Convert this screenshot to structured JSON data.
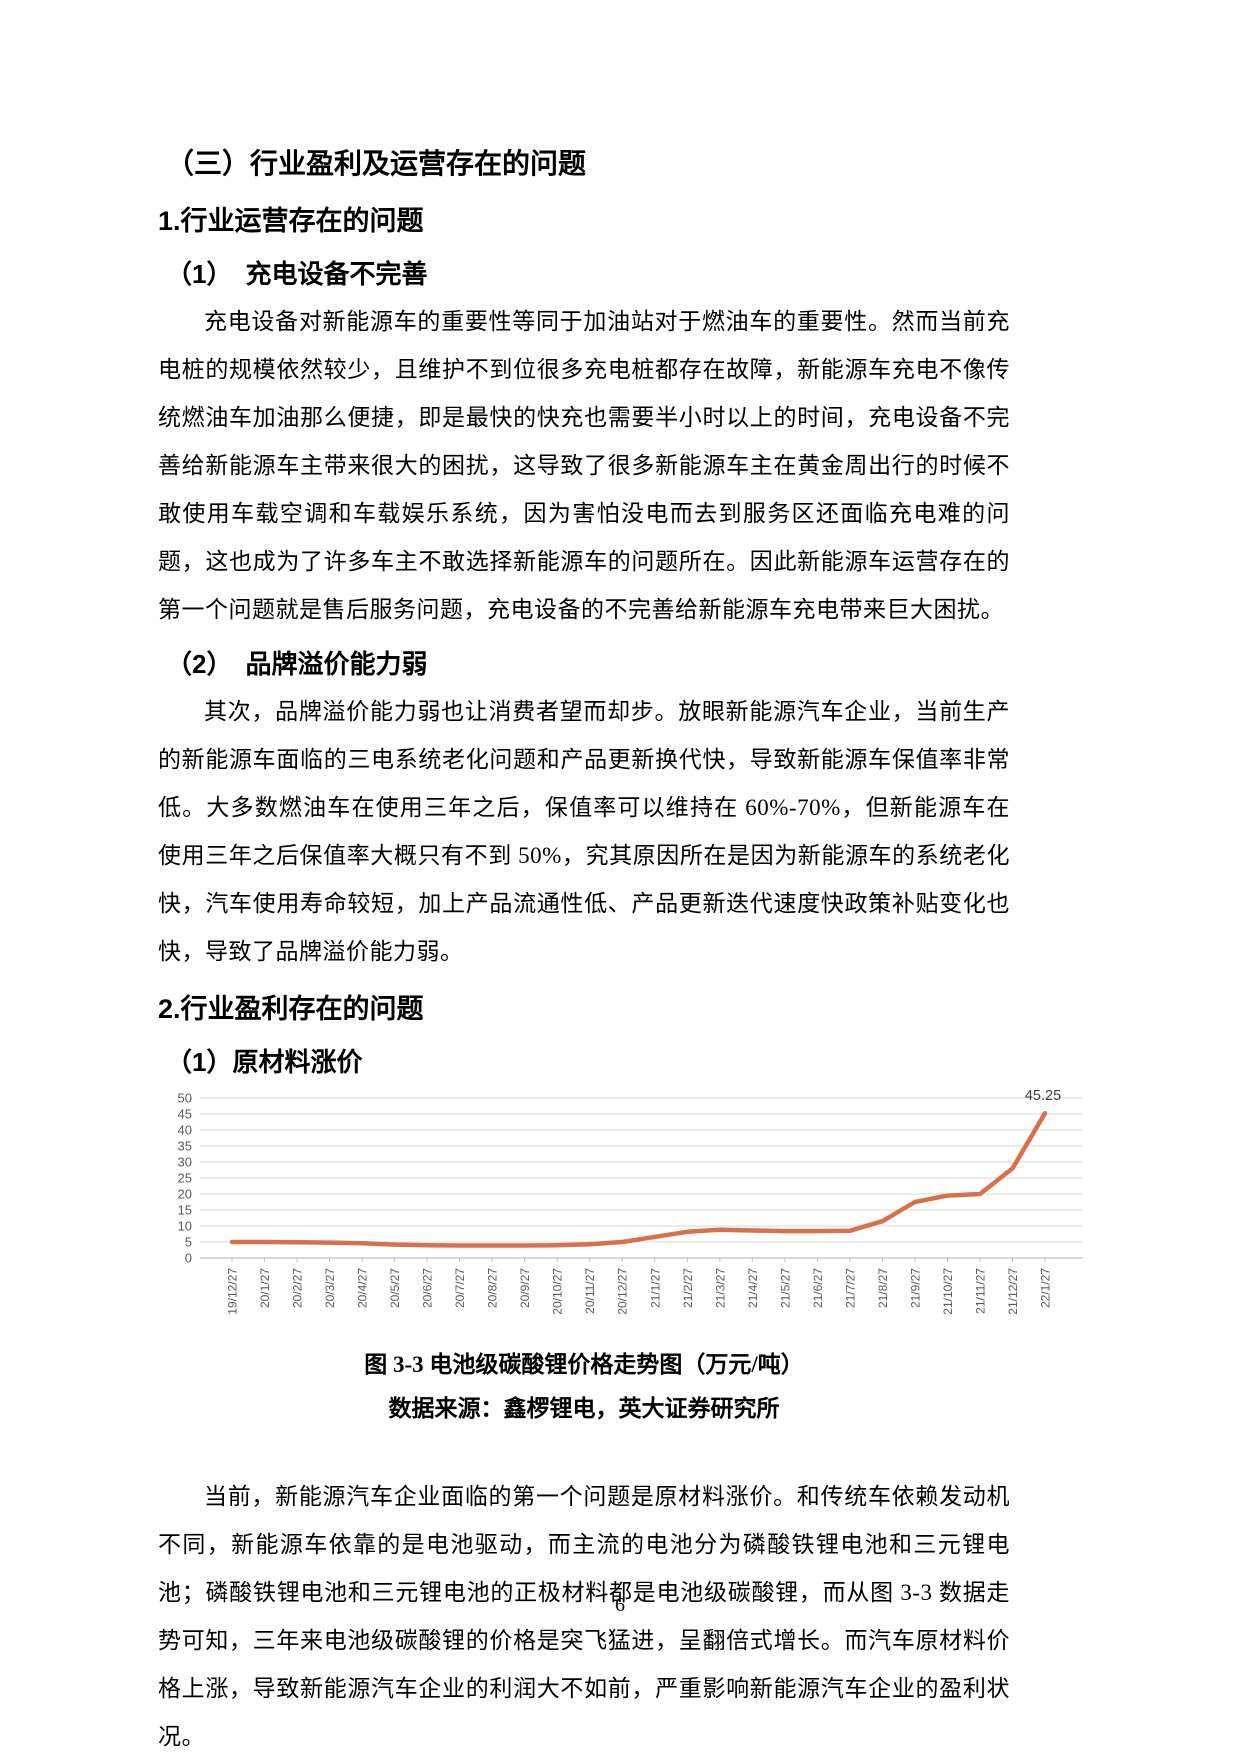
{
  "page": {
    "number": "6"
  },
  "sections": {
    "h1": "（三）行业盈利及运营存在的问题",
    "h2_1": "1.行业运营存在的问题",
    "h3_1": "（1）　充电设备不完善",
    "p1": "充电设备对新能源车的重要性等同于加油站对于燃油车的重要性。然而当前充电桩的规模依然较少，且维护不到位很多充电桩都存在故障，新能源车充电不像传统燃油车加油那么便捷，即是最快的快充也需要半小时以上的时间，充电设备不完善给新能源车主带来很大的困扰，这导致了很多新能源车主在黄金周出行的时候不敢使用车载空调和车载娱乐系统，因为害怕没电而去到服务区还面临充电难的问题，这也成为了许多车主不敢选择新能源车的问题所在。因此新能源车运营存在的第一个问题就是售后服务问题，充电设备的不完善给新能源车充电带来巨大困扰。",
    "h3_2": "（2）　品牌溢价能力弱",
    "p2": "其次，品牌溢价能力弱也让消费者望而却步。放眼新能源汽车企业，当前生产的新能源车面临的三电系统老化问题和产品更新换代快，导致新能源车保值率非常低。大多数燃油车在使用三年之后，保值率可以维持在 60%-70%，但新能源车在使用三年之后保值率大概只有不到 50%，究其原因所在是因为新能源车的系统老化快，汽车使用寿命较短，加上产品流通性低、产品更新迭代速度快政策补贴变化也快，导致了品牌溢价能力弱。",
    "h2_2": "2.行业盈利存在的问题",
    "h3_3": "（1）原材料涨价",
    "caption_line1": "图 3-3 电池级碳酸锂价格走势图（万元/吨）",
    "caption_line2": "数据来源：鑫椤锂电，英大证券研究所",
    "p3": "当前，新能源汽车企业面临的第一个问题是原材料涨价。和传统车依赖发动机不同，新能源车依靠的是电池驱动，而主流的电池分为磷酸铁锂电池和三元锂电池；磷酸铁锂电池和三元锂电池的正极材料都是电池级碳酸锂，而从图 3-3 数据走势可知，三年来电池级碳酸锂的价格是突飞猛进，呈翻倍式增长。而汽车原材料价格上涨，导致新能源汽车企业的利润大不如前，严重影响新能源汽车企业的盈利状况。"
  },
  "chart_data": {
    "type": "line",
    "title": "电池级碳酸锂价格走势图（万元/吨）",
    "xlabel": "",
    "ylabel": "",
    "categories": [
      "19/12/27",
      "20/1/27",
      "20/2/27",
      "20/3/27",
      "20/4/27",
      "20/5/27",
      "20/6/27",
      "20/7/27",
      "20/8/27",
      "20/9/27",
      "20/10/27",
      "20/11/27",
      "20/12/27",
      "21/1/27",
      "21/2/27",
      "21/3/27",
      "21/4/27",
      "21/5/27",
      "21/6/27",
      "21/7/27",
      "21/8/27",
      "21/9/27",
      "21/10/27",
      "21/11/27",
      "21/12/27",
      "22/1/27"
    ],
    "values": [
      5,
      5,
      4.9,
      4.8,
      4.6,
      4.2,
      4,
      3.9,
      3.9,
      3.9,
      4,
      4.3,
      5,
      6.6,
      8.2,
      8.8,
      8.6,
      8.4,
      8.4,
      8.5,
      11.5,
      17.5,
      19.5,
      20,
      28,
      45.25
    ],
    "last_point_label": "45.25",
    "ylim": [
      0,
      50
    ],
    "y_tick_step": 5,
    "grid": true,
    "legend_position": "none",
    "line_color": "#d9704c",
    "grid_color": "#d9d9d9",
    "axis_color": "#bfbfbf",
    "tick_label_color": "#595959",
    "data_label_color": "#404040"
  }
}
